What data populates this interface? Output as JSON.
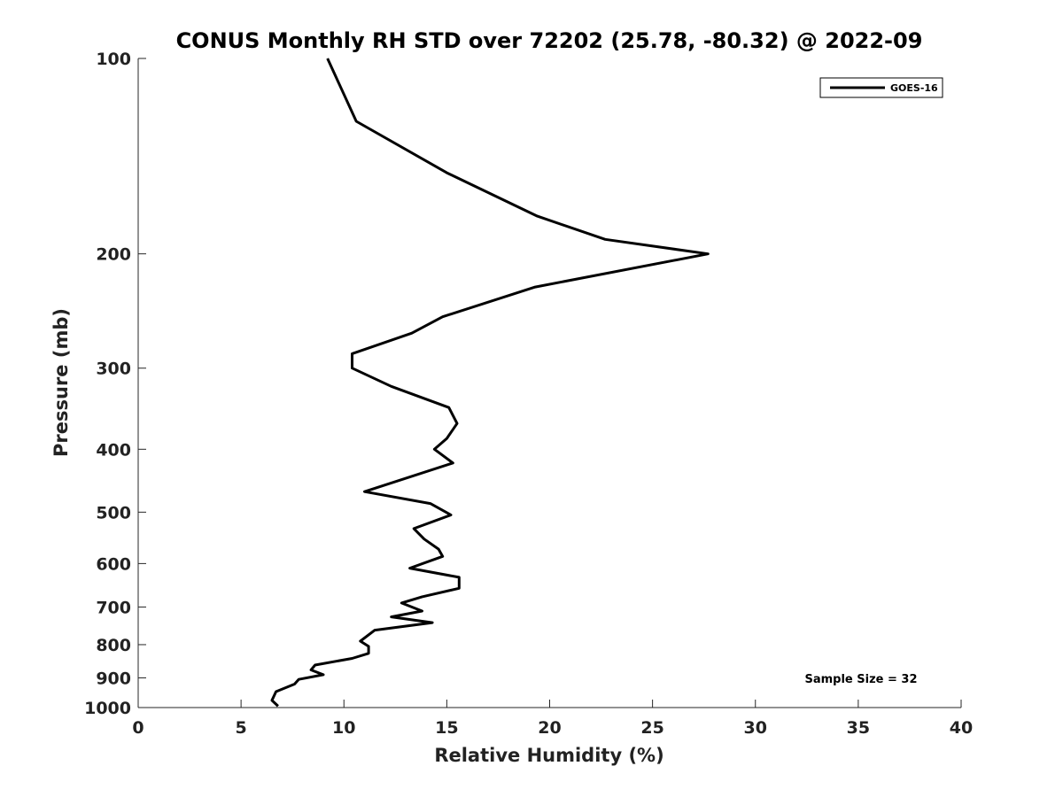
{
  "chart_data": {
    "type": "line",
    "title": "CONUS Monthly RH STD over 72202 (25.78, -80.32) @ 2022-09",
    "xlabel": "Relative Humidity (%)",
    "ylabel": "Pressure (mb)",
    "xlim": [
      0,
      40
    ],
    "ylim": [
      100,
      1000
    ],
    "y_scale": "log",
    "y_reversed": true,
    "x_ticks": [
      0,
      5,
      10,
      15,
      20,
      25,
      30,
      35,
      40
    ],
    "y_ticks": [
      100,
      200,
      300,
      400,
      500,
      600,
      700,
      800,
      900,
      1000
    ],
    "grid": false,
    "legend_position": "top-right",
    "series": [
      {
        "name": "GOES-16",
        "color": "#000000",
        "points": [
          [
            9.2,
            100
          ],
          [
            10.6,
            125
          ],
          [
            15.0,
            150
          ],
          [
            19.4,
            175
          ],
          [
            22.7,
            190
          ],
          [
            27.7,
            200
          ],
          [
            19.3,
            225
          ],
          [
            14.8,
            250
          ],
          [
            13.3,
            265
          ],
          [
            10.4,
            285
          ],
          [
            10.4,
            300
          ],
          [
            12.3,
            320
          ],
          [
            15.1,
            345
          ],
          [
            15.5,
            365
          ],
          [
            15.0,
            385
          ],
          [
            14.4,
            400
          ],
          [
            15.3,
            420
          ],
          [
            11.0,
            465
          ],
          [
            14.2,
            485
          ],
          [
            15.2,
            505
          ],
          [
            13.4,
            530
          ],
          [
            13.9,
            550
          ],
          [
            14.6,
            570
          ],
          [
            14.8,
            585
          ],
          [
            13.2,
            610
          ],
          [
            15.6,
            630
          ],
          [
            15.6,
            655
          ],
          [
            13.8,
            675
          ],
          [
            12.8,
            690
          ],
          [
            13.8,
            710
          ],
          [
            12.3,
            725
          ],
          [
            14.3,
            740
          ],
          [
            11.5,
            760
          ],
          [
            10.8,
            790
          ],
          [
            11.2,
            805
          ],
          [
            11.2,
            825
          ],
          [
            10.4,
            840
          ],
          [
            8.6,
            860
          ],
          [
            8.4,
            875
          ],
          [
            9.0,
            890
          ],
          [
            7.8,
            905
          ],
          [
            7.6,
            920
          ],
          [
            6.7,
            945
          ],
          [
            6.5,
            975
          ],
          [
            6.8,
            995
          ]
        ]
      }
    ],
    "annotations": [
      {
        "text": "Sample Size = 32"
      }
    ]
  }
}
